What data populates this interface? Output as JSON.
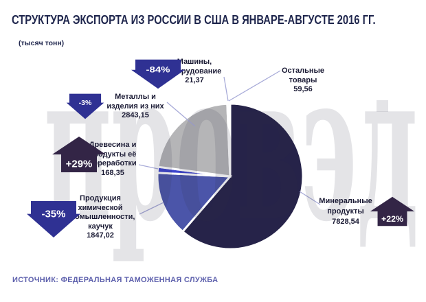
{
  "header": {
    "title": "СТРУКТУРА ЭКСПОРТА ИЗ РОССИИ В США В ЯНВАРЕ-АВГУСТЕ 2016 ГГ.",
    "subtitle": "(тысяч тонн)"
  },
  "watermark": {
    "text": "провэд"
  },
  "colors": {
    "title_text": "#20274E",
    "label_text": "#1B1B35",
    "source_text": "#5E61AD",
    "leader_line": "#A8ABD8",
    "down_arrow": "#2F3193",
    "up_arrow": "#332546",
    "watermark": "rgba(45,45,70,0.13)",
    "pie_gap_stroke": "#ffffff"
  },
  "annotations": {
    "machinery": "Машины,\nоборудование\n21,37",
    "other": "Остальные\nтовары\n59,56",
    "metals": "Металлы и\nизделия из них\n2843,15",
    "wood": "Древесина и\nпродукты её\nпереработки\n168,35",
    "chemical": "Продукция\nхимической\nпромышленности,\nкаучук\n1847,02",
    "mineral": "Минеральные\nпродукты\n7828,54"
  },
  "badges": {
    "machinery": "-84%",
    "metals": "-3%",
    "wood": "+29%",
    "chemical": "-35%",
    "mineral": "+22%"
  },
  "footer": {
    "source": "ИСТОЧНИК: ФЕДЕРАЛЬНАЯ ТАМОЖЕННАЯ СЛУЖБА"
  },
  "chart_data": {
    "type": "pie",
    "title": "СТРУКТУРА ЭКСПОРТА ИЗ РОССИИ В США В ЯНВАРЕ-АВГУСТЕ 2016 ГГ.",
    "units": "тысяч тонн",
    "start_angle_deg": 0,
    "direction": "clockwise",
    "legend_position": "none",
    "slices": [
      {
        "id": "mineral",
        "label": "Минеральные продукты",
        "value": 7828.54,
        "display": "7828,54",
        "change": "+22%",
        "color": "#262349"
      },
      {
        "id": "chemical",
        "label": "Продукция химической промышленности, каучук",
        "value": 1847.02,
        "display": "1847,02",
        "change": "-35%",
        "color": "#4B55A9"
      },
      {
        "id": "wood",
        "label": "Древесина и продукты её переработки",
        "value": 168.35,
        "display": "168,35",
        "change": "+29%",
        "color": "#3E46CE"
      },
      {
        "id": "metals",
        "label": "Металлы и изделия из них",
        "value": 2843.15,
        "display": "2843,15",
        "change": "-3%",
        "color": "#B5B5B7"
      },
      {
        "id": "other",
        "label": "Остальные товары",
        "value": 59.56,
        "display": "59,56",
        "change": null,
        "color": "#C9C9CB"
      },
      {
        "id": "machinery",
        "label": "Машины, оборудование",
        "value": 21.37,
        "display": "21,37",
        "change": "-84%",
        "color": "#BFBFC1"
      }
    ],
    "source": "ИСТОЧНИК: ФЕДЕРАЛЬНАЯ ТАМОЖЕННАЯ СЛУЖБА"
  }
}
